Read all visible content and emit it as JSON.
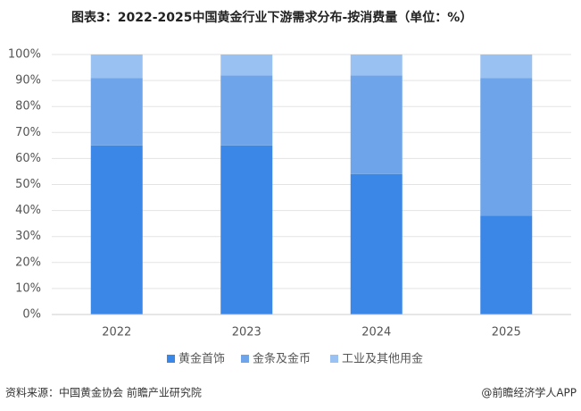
{
  "chart_data": {
    "type": "stacked_bar",
    "title": "图表3：2022-2025中国黄金行业下游需求分布-按消费量（单位：%）",
    "categories": [
      "2022",
      "2023",
      "2024",
      "2025"
    ],
    "series": [
      {
        "name": "黄金首饰",
        "color": "#3b87e8",
        "values": [
          65,
          65,
          54,
          38
        ]
      },
      {
        "name": "金条及金币",
        "color": "#6ea5ea",
        "values": [
          26,
          27,
          38,
          53
        ]
      },
      {
        "name": "工业及其他用金",
        "color": "#99c2f2",
        "values": [
          9,
          8,
          8,
          9
        ]
      }
    ],
    "ylim": [
      0,
      100
    ],
    "yticks": [
      {
        "value": 0,
        "label": "0%"
      },
      {
        "value": 10,
        "label": "10%"
      },
      {
        "value": 20,
        "label": "20%"
      },
      {
        "value": 30,
        "label": "30%"
      },
      {
        "value": 40,
        "label": "40%"
      },
      {
        "value": 50,
        "label": "50%"
      },
      {
        "value": 60,
        "label": "60%"
      },
      {
        "value": 70,
        "label": "70%"
      },
      {
        "value": 80,
        "label": "80%"
      },
      {
        "value": 90,
        "label": "90%"
      },
      {
        "value": 100,
        "label": "100%"
      }
    ],
    "grid": true
  },
  "footer": {
    "source": "资料来源：中国黄金协会   前瞻产业研究院",
    "brand": "@前瞻经济学人APP"
  }
}
